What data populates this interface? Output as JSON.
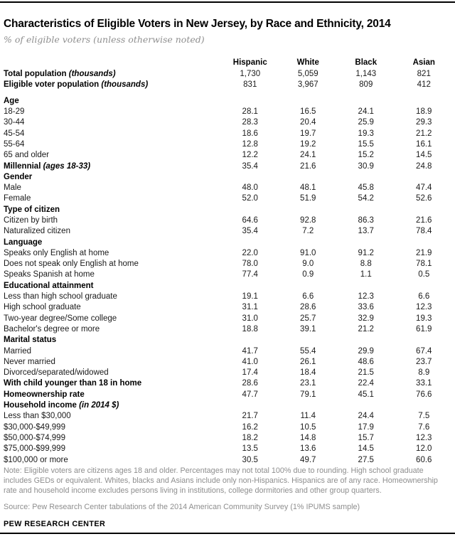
{
  "page": {
    "title": "Characteristics of Eligible Voters in New Jersey, by Race and Ethnicity, 2014",
    "subtitle": "% of eligible voters (unless otherwise noted)"
  },
  "chart_data": {
    "type": "table",
    "title": "Characteristics of Eligible Voters in New Jersey, by Race and Ethnicity, 2014",
    "subtitle": "% of eligible voters (unless otherwise noted)",
    "columns": [
      "Hispanic",
      "White",
      "Black",
      "Asian"
    ],
    "rows": [
      {
        "label": "Total population",
        "note": "(thousands)",
        "bold": true,
        "indent": 0,
        "values": [
          "1,730",
          "5,059",
          "1,143",
          "821"
        ]
      },
      {
        "label": "Eligible voter population",
        "note": "(thousands)",
        "bold": true,
        "indent": 0,
        "values": [
          "831",
          "3,967",
          "809",
          "412"
        ],
        "gap_after": true
      },
      {
        "label": "Age",
        "bold": true,
        "indent": 0,
        "values": null
      },
      {
        "label": "18-29",
        "indent": 1,
        "values": [
          "28.1",
          "16.5",
          "24.1",
          "18.9"
        ]
      },
      {
        "label": "30-44",
        "indent": 1,
        "values": [
          "28.3",
          "20.4",
          "25.9",
          "29.3"
        ]
      },
      {
        "label": "45-54",
        "indent": 1,
        "values": [
          "18.6",
          "19.7",
          "19.3",
          "21.2"
        ]
      },
      {
        "label": "55-64",
        "indent": 1,
        "values": [
          "12.8",
          "19.2",
          "15.5",
          "16.1"
        ]
      },
      {
        "label": "65 and older",
        "indent": 1,
        "values": [
          "12.2",
          "24.1",
          "15.2",
          "14.5"
        ]
      },
      {
        "label": "Millennial",
        "note": "(ages 18-33)",
        "bold": true,
        "indent": 0,
        "values": [
          "35.4",
          "21.6",
          "30.9",
          "24.8"
        ]
      },
      {
        "label": "Gender",
        "bold": true,
        "indent": 0,
        "values": null
      },
      {
        "label": "Male",
        "indent": 1,
        "values": [
          "48.0",
          "48.1",
          "45.8",
          "47.4"
        ]
      },
      {
        "label": "Female",
        "indent": 1,
        "values": [
          "52.0",
          "51.9",
          "54.2",
          "52.6"
        ]
      },
      {
        "label": "Type of citizen",
        "bold": true,
        "indent": 0,
        "values": null
      },
      {
        "label": "Citizen by birth",
        "indent": 1,
        "values": [
          "64.6",
          "92.8",
          "86.3",
          "21.6"
        ]
      },
      {
        "label": "Naturalized citizen",
        "indent": 1,
        "values": [
          "35.4",
          "7.2",
          "13.7",
          "78.4"
        ]
      },
      {
        "label": "Language",
        "bold": true,
        "indent": 0,
        "values": null
      },
      {
        "label": "Speaks only English at home",
        "indent": 1,
        "values": [
          "22.0",
          "91.0",
          "91.2",
          "21.9"
        ]
      },
      {
        "label": "Does not speak only English at home",
        "indent": 1,
        "values": [
          "78.0",
          "9.0",
          "8.8",
          "78.1"
        ]
      },
      {
        "label": "Speaks Spanish at home",
        "indent": 2,
        "values": [
          "77.4",
          "0.9",
          "1.1",
          "0.5"
        ]
      },
      {
        "label": "Educational attainment",
        "bold": true,
        "indent": 0,
        "values": null
      },
      {
        "label": "Less than high school graduate",
        "indent": 1,
        "values": [
          "19.1",
          "6.6",
          "12.3",
          "6.6"
        ]
      },
      {
        "label": "High school graduate",
        "indent": 1,
        "values": [
          "31.1",
          "28.6",
          "33.6",
          "12.3"
        ]
      },
      {
        "label": "Two-year degree/Some college",
        "indent": 1,
        "values": [
          "31.0",
          "25.7",
          "32.9",
          "19.3"
        ]
      },
      {
        "label": "Bachelor's degree or more",
        "indent": 1,
        "values": [
          "18.8",
          "39.1",
          "21.2",
          "61.9"
        ]
      },
      {
        "label": "Marital status",
        "bold": true,
        "indent": 0,
        "values": null
      },
      {
        "label": "Married",
        "indent": 1,
        "values": [
          "41.7",
          "55.4",
          "29.9",
          "67.4"
        ]
      },
      {
        "label": "Never married",
        "indent": 1,
        "values": [
          "41.0",
          "26.1",
          "48.6",
          "23.7"
        ]
      },
      {
        "label": "Divorced/separated/widowed",
        "indent": 1,
        "values": [
          "17.4",
          "18.4",
          "21.5",
          "8.9"
        ]
      },
      {
        "label": "With child younger than 18 in home",
        "bold": true,
        "indent": 0,
        "values": [
          "28.6",
          "23.1",
          "22.4",
          "33.1"
        ]
      },
      {
        "label": "Homeownership rate",
        "bold": true,
        "indent": 0,
        "values": [
          "47.7",
          "79.1",
          "45.1",
          "76.6"
        ]
      },
      {
        "label": "Household income",
        "note": "(in 2014 $)",
        "bold": true,
        "indent": 0,
        "values": null
      },
      {
        "label": "Less than $30,000",
        "indent": 1,
        "values": [
          "21.7",
          "11.4",
          "24.4",
          "7.5"
        ]
      },
      {
        "label": "$30,000-$49,999",
        "indent": 1,
        "values": [
          "16.2",
          "10.5",
          "17.9",
          "7.6"
        ]
      },
      {
        "label": "$50,000-$74,999",
        "indent": 1,
        "values": [
          "18.2",
          "14.8",
          "15.7",
          "12.3"
        ]
      },
      {
        "label": "$75,000-$99,999",
        "indent": 1,
        "values": [
          "13.5",
          "13.6",
          "14.5",
          "12.0"
        ]
      },
      {
        "label": "$100,000 or more",
        "indent": 1,
        "values": [
          "30.5",
          "49.7",
          "27.5",
          "60.6"
        ]
      }
    ]
  },
  "footer": {
    "note": "Note: Eligible voters are citizens ages 18 and older. Percentages may not total 100% due to rounding. High school graduate includes GEDs or equivalent. Whites, blacks and Asians include only non-Hispanics. Hispanics are of any race. Homeownership rate and household income excludes persons living in institutions, college dormitories and other group quarters.",
    "source": "Source: Pew Research Center tabulations of the 2014 American Community Survey (1% IPUMS sample)",
    "brand": "PEW RESEARCH CENTER"
  },
  "colors": {
    "text": "#1a1a1a",
    "muted": "#8e8e8e",
    "rule": "#000000",
    "background": "#ffffff"
  }
}
